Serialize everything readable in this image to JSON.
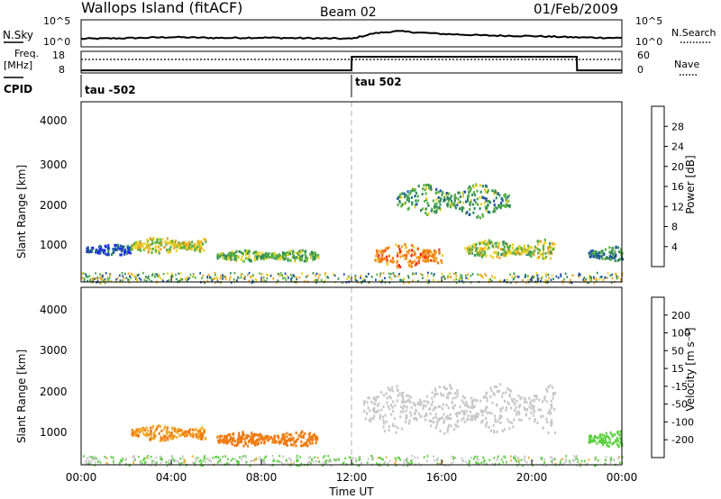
{
  "header": {
    "site": "Wallops Island (fitACF)",
    "beam": "Beam 02",
    "date": "01/Feb/2009"
  },
  "top_panel": {
    "noise_label": "N.Sky",
    "noise_right_label": "N.Search",
    "noise_ticks_left": [
      "10^5",
      "10^0"
    ],
    "noise_ticks_right": [
      "10^5",
      "10^0"
    ],
    "freq_label_1": "Freq.",
    "freq_label_2": "[MHz]",
    "freq_ticks_left": [
      "18",
      "8"
    ],
    "freq_ticks_right": [
      "60",
      "0"
    ],
    "nave_label": "Nave",
    "cpid_label": "CPID",
    "cpid_1": "tau -502",
    "cpid_2": "tau 502"
  },
  "power_panel": {
    "ylabel": "Slant Range [km]",
    "yticks": [
      "4000",
      "3000",
      "2000",
      "1000"
    ],
    "colorbar_title": "Power [dB]",
    "colorbar_ticks": [
      "28",
      "24",
      "20",
      "16",
      "12",
      "8",
      "4"
    ],
    "colors": [
      "#2020ff",
      "#1c4fa8",
      "#2f8c5a",
      "#55b040",
      "#e8d020",
      "#f0a020",
      "#f07010",
      "#ff2010"
    ]
  },
  "velocity_panel": {
    "ylabel": "Slant Range [km]",
    "yticks": [
      "4000",
      "3000",
      "2000",
      "1000"
    ],
    "colorbar_title": "Velocity [m s⁻¹]",
    "colorbar_ticks": [
      "200",
      "100",
      "50",
      "15",
      "-15",
      "-50",
      "-100",
      "-200"
    ],
    "colors": [
      "#2020d0",
      "#1c55a0",
      "#2f8a55",
      "#5cd040",
      "#c8c8c8",
      "#f0b030",
      "#f07a10",
      "#f03a10",
      "#ff1010"
    ]
  },
  "xaxis": {
    "label": "Time UT",
    "ticks": [
      "00:00",
      "04:00",
      "08:00",
      "12:00",
      "16:00",
      "20:00",
      "00:00"
    ]
  },
  "chart_data": {
    "type": "heatmap",
    "title": "Wallops Island (fitACF)",
    "xlabel": "Time UT",
    "ylabel": "Slant Range [km]",
    "x_range_hours": [
      0,
      24
    ],
    "y_range_km": [
      180,
      4600
    ],
    "grid": false,
    "noise_sky_trace": [
      [
        0,
        0.3
      ],
      [
        2,
        0.32
      ],
      [
        4,
        0.36
      ],
      [
        6,
        0.33
      ],
      [
        8,
        0.34
      ],
      [
        10,
        0.32
      ],
      [
        12,
        0.3
      ],
      [
        13,
        0.5
      ],
      [
        14,
        0.58
      ],
      [
        16,
        0.48
      ],
      [
        18,
        0.42
      ],
      [
        20,
        0.4
      ],
      [
        22,
        0.35
      ],
      [
        24,
        0.33
      ]
    ],
    "frequency_trace_mhz": [
      [
        0,
        9.2
      ],
      [
        12,
        9.2
      ],
      [
        12.01,
        15.5
      ],
      [
        22,
        15.5
      ],
      [
        22.01,
        9.2
      ],
      [
        24,
        9.2
      ]
    ],
    "cpid_switch_hour": 12,
    "power_db_regions": [
      {
        "t_start": 0.2,
        "t_end": 2.2,
        "range_center_km": 1000,
        "range_width_km": 200,
        "power_db": 6
      },
      {
        "t_start": 2.2,
        "t_end": 5.5,
        "range_center_km": 1100,
        "range_width_km": 300,
        "power_db": 18
      },
      {
        "t_start": 6.0,
        "t_end": 10.5,
        "range_center_km": 850,
        "range_width_km": 200,
        "power_db": 14
      },
      {
        "t_start": 13.0,
        "t_end": 16.0,
        "range_center_km": 850,
        "range_width_km": 450,
        "power_db": 24
      },
      {
        "t_start": 14.0,
        "t_end": 19.0,
        "range_center_km": 2200,
        "range_width_km": 600,
        "power_db": 12
      },
      {
        "t_start": 17.0,
        "t_end": 21.0,
        "range_center_km": 1000,
        "range_width_km": 350,
        "power_db": 16
      },
      {
        "t_start": 22.5,
        "t_end": 24.0,
        "range_center_km": 900,
        "range_width_km": 250,
        "power_db": 10
      }
    ],
    "velocity_regions": [
      {
        "t_start": 2.2,
        "t_end": 5.5,
        "range_center_km": 1000,
        "velocity_ms": -50
      },
      {
        "t_start": 6.0,
        "t_end": 10.5,
        "range_center_km": 850,
        "velocity_ms": -80
      },
      {
        "t_start": 12.5,
        "t_end": 21.0,
        "range_center_km": 1600,
        "velocity_ms": 0
      },
      {
        "t_start": 22.5,
        "t_end": 24.0,
        "range_center_km": 850,
        "velocity_ms": 30
      }
    ]
  }
}
